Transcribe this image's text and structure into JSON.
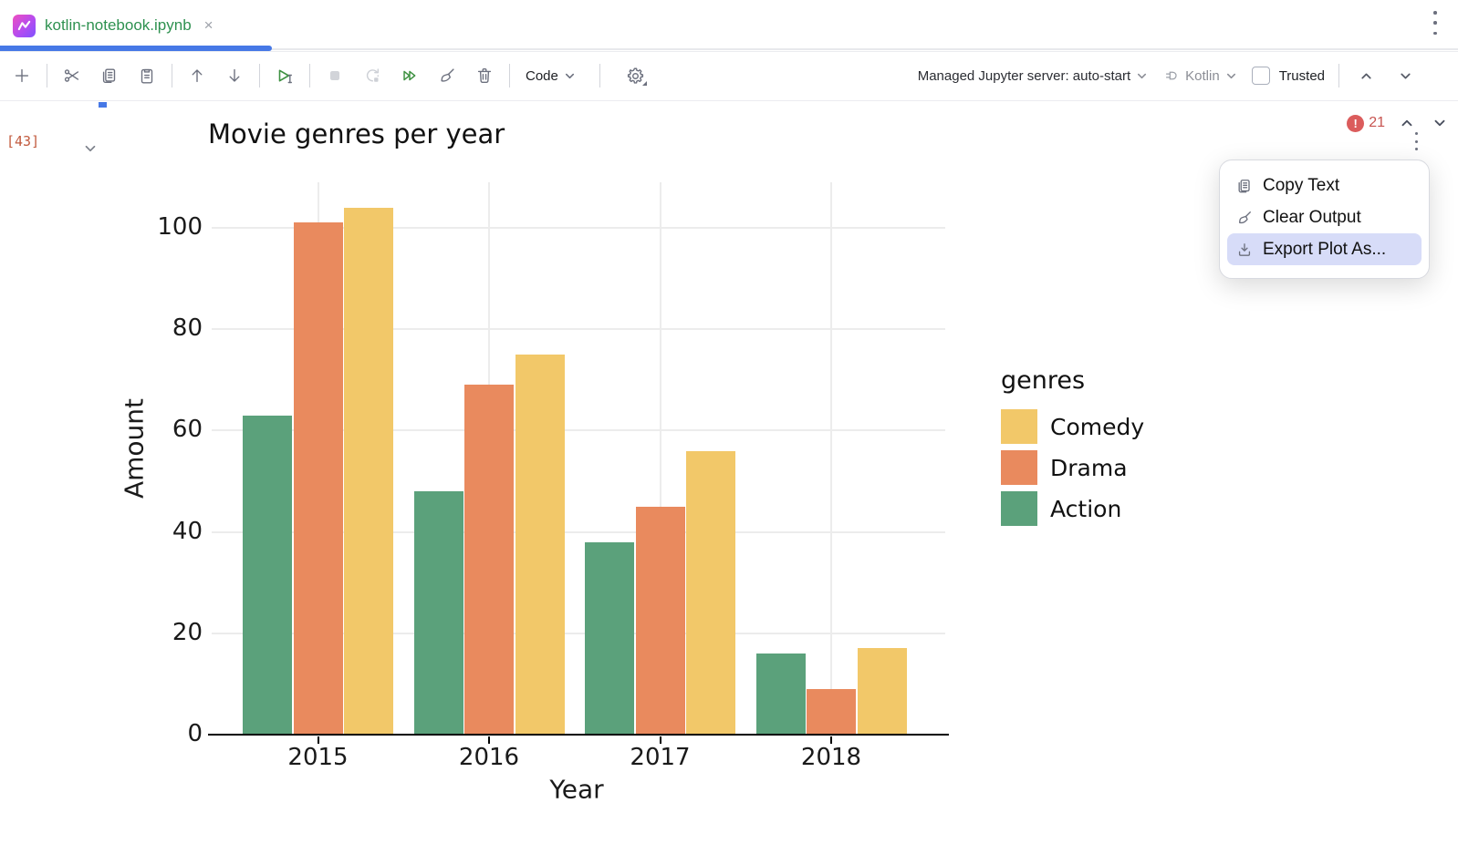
{
  "tab": {
    "title": "kotlin-notebook.ipynb",
    "close_glyph": "×"
  },
  "toolbar": {
    "code_label": "Code",
    "server_label": "Managed Jupyter server: auto-start",
    "kernel_label": "Kotlin",
    "trusted_label": "Trusted"
  },
  "cell": {
    "exec_count": "[43]"
  },
  "output": {
    "error_count": "21"
  },
  "context_menu": {
    "items": [
      {
        "label": "Copy Text",
        "icon": "copy-icon",
        "highlighted": false
      },
      {
        "label": "Clear Output",
        "icon": "broom-icon",
        "highlighted": false
      },
      {
        "label": "Export Plot As...",
        "icon": "download-icon",
        "highlighted": true
      }
    ]
  },
  "chart_data": {
    "type": "bar",
    "title": "Movie genres per year",
    "xlabel": "Year",
    "ylabel": "Amount",
    "categories": [
      "2015",
      "2016",
      "2017",
      "2018"
    ],
    "series": [
      {
        "name": "Action",
        "color": "#5BA17B",
        "values": [
          63,
          48,
          38,
          16
        ]
      },
      {
        "name": "Drama",
        "color": "#E98A5E",
        "values": [
          101,
          69,
          45,
          9
        ]
      },
      {
        "name": "Comedy",
        "color": "#F2C869",
        "values": [
          104,
          75,
          56,
          17
        ]
      }
    ],
    "yticks": [
      0,
      20,
      40,
      60,
      80,
      100
    ],
    "ylim": [
      0,
      109
    ],
    "grid": true,
    "legend_title": "genres",
    "legend_position": "right",
    "legend_order": [
      "Comedy",
      "Drama",
      "Action"
    ]
  }
}
